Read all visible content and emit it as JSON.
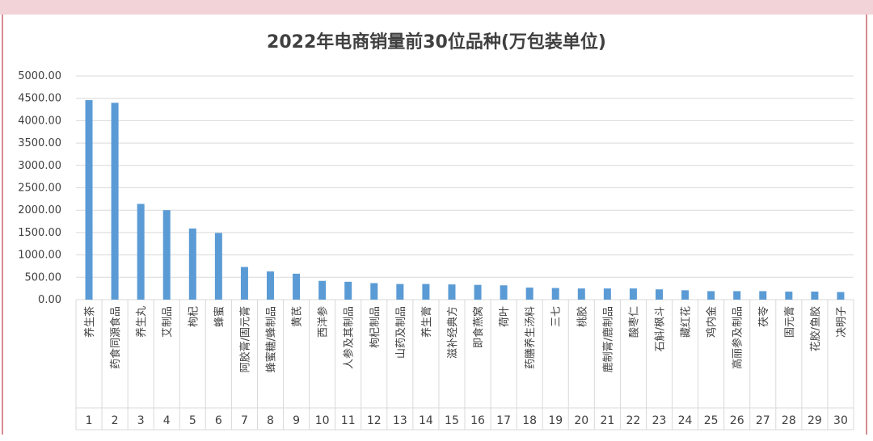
{
  "chart_data": {
    "type": "bar",
    "title": "2022年电商销量前30位品种(万包装单位)",
    "ylim": [
      0,
      5000
    ],
    "yticks": [
      "0.00",
      "500.00",
      "1000.00",
      "1500.00",
      "2000.00",
      "2500.00",
      "3000.00",
      "3500.00",
      "4000.00",
      "4500.00",
      "5000.00"
    ],
    "grid": true,
    "bar_color": "#5b9bd5",
    "categories": [
      {
        "rank": "1",
        "name": "养生茶"
      },
      {
        "rank": "2",
        "name": "药食同源食品"
      },
      {
        "rank": "3",
        "name": "养生丸"
      },
      {
        "rank": "4",
        "name": "艾制品"
      },
      {
        "rank": "5",
        "name": "枸杞"
      },
      {
        "rank": "6",
        "name": "蜂蜜"
      },
      {
        "rank": "7",
        "name": "阿胶膏/固元膏"
      },
      {
        "rank": "8",
        "name": "蜂蜜糖/蜂制品"
      },
      {
        "rank": "9",
        "name": "黄芪"
      },
      {
        "rank": "10",
        "name": "西洋参"
      },
      {
        "rank": "11",
        "name": "人参及其制品"
      },
      {
        "rank": "12",
        "name": "枸杞制品"
      },
      {
        "rank": "13",
        "name": "山药及制品"
      },
      {
        "rank": "14",
        "name": "养生膏"
      },
      {
        "rank": "15",
        "name": "滋补经典方"
      },
      {
        "rank": "16",
        "name": "即食燕窝"
      },
      {
        "rank": "17",
        "name": "荷叶"
      },
      {
        "rank": "18",
        "name": "药膳养生汤料"
      },
      {
        "rank": "19",
        "name": "三七"
      },
      {
        "rank": "20",
        "name": "桃胶"
      },
      {
        "rank": "21",
        "name": "鹿制膏/鹿制品"
      },
      {
        "rank": "22",
        "name": "酸枣仁"
      },
      {
        "rank": "23",
        "name": "石斛/枫斗"
      },
      {
        "rank": "24",
        "name": "藏红花"
      },
      {
        "rank": "25",
        "name": "鸡内金"
      },
      {
        "rank": "26",
        "name": "高丽参及制品"
      },
      {
        "rank": "27",
        "name": "茯苓"
      },
      {
        "rank": "28",
        "name": "固元膏"
      },
      {
        "rank": "29",
        "name": "花胶/鱼胶"
      },
      {
        "rank": "30",
        "name": "决明子"
      }
    ],
    "values": [
      4460,
      4400,
      2140,
      2000,
      1590,
      1490,
      730,
      630,
      580,
      420,
      400,
      370,
      350,
      350,
      340,
      330,
      320,
      270,
      260,
      250,
      250,
      250,
      230,
      210,
      190,
      190,
      190,
      180,
      180,
      170
    ]
  }
}
